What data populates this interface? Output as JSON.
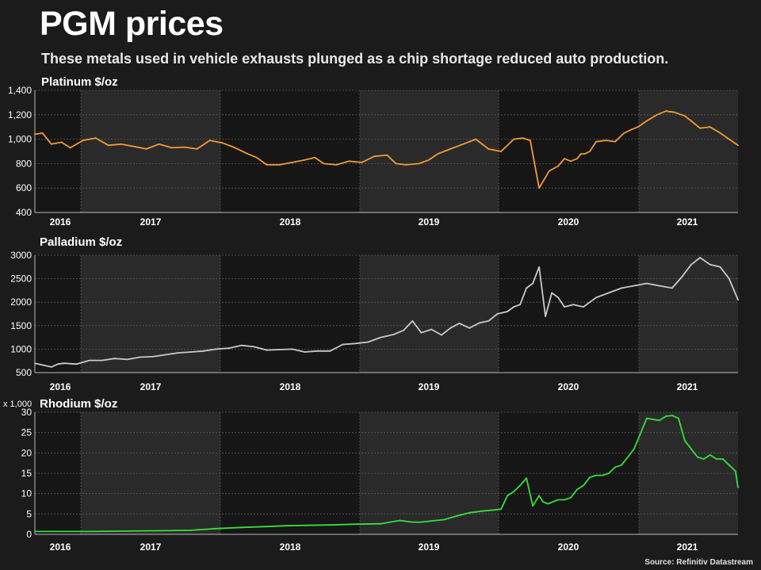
{
  "title": "PGM prices",
  "subtitle": "These metals used in vehicle exhausts plunged as a chip shortage reduced auto production.",
  "source": "Source: Refinitiv Datastream",
  "colors": {
    "background": "#1b1b1b",
    "band_dark": "#161616",
    "band_light": "#2a2a2a",
    "platinum": "#f29a38",
    "palladium": "#c9c9c9",
    "rhodium": "#37e03a",
    "text": "#ffffff"
  },
  "chart_data": [
    {
      "type": "line",
      "title": "Platinum $/oz",
      "unit_note": "",
      "x_range": [
        2015.87,
        2021.42
      ],
      "ylim": [
        400,
        1400
      ],
      "yticks": [
        400,
        600,
        800,
        1000,
        1200,
        1400
      ],
      "ytick_labels": [
        "400",
        "600",
        "800",
        "1,000",
        "1,200",
        "1,400"
      ],
      "xticks": [
        "2016",
        "2017",
        "2018",
        "2019",
        "2020",
        "2021"
      ],
      "grid": true,
      "series": [
        {
          "color_key": "platinum",
          "x": [
            2015.87,
            2015.93,
            2016.0,
            2016.08,
            2016.15,
            2016.25,
            2016.35,
            2016.45,
            2016.55,
            2016.65,
            2016.75,
            2016.85,
            2016.95,
            2017.05,
            2017.15,
            2017.25,
            2017.35,
            2017.45,
            2017.55,
            2017.62,
            2017.7,
            2017.8,
            2017.9,
            2018.0,
            2018.08,
            2018.15,
            2018.25,
            2018.35,
            2018.45,
            2018.55,
            2018.65,
            2018.72,
            2018.8,
            2018.9,
            2018.98,
            2019.05,
            2019.15,
            2019.25,
            2019.35,
            2019.45,
            2019.55,
            2019.65,
            2019.72,
            2019.78,
            2019.85,
            2019.93,
            2020.0,
            2020.05,
            2020.1,
            2020.15,
            2020.18,
            2020.21,
            2020.25,
            2020.3,
            2020.38,
            2020.45,
            2020.52,
            2020.58,
            2020.63,
            2020.7,
            2020.78,
            2020.85,
            2020.92,
            2021.0,
            2021.05,
            2021.12,
            2021.2,
            2021.28,
            2021.35,
            2021.42
          ],
          "y": [
            1040,
            1050,
            960,
            975,
            930,
            990,
            1010,
            950,
            960,
            940,
            920,
            960,
            930,
            935,
            920,
            990,
            970,
            930,
            880,
            850,
            790,
            790,
            810,
            830,
            850,
            800,
            790,
            820,
            810,
            860,
            870,
            800,
            790,
            800,
            830,
            880,
            920,
            960,
            1000,
            920,
            900,
            1000,
            1010,
            990,
            600,
            740,
            780,
            840,
            820,
            840,
            880,
            880,
            900,
            980,
            990,
            980,
            1050,
            1080,
            1100,
            1150,
            1200,
            1230,
            1220,
            1190,
            1150,
            1090,
            1100,
            1050,
            1000,
            950
          ]
        }
      ]
    },
    {
      "type": "line",
      "title": "Palladium $/oz",
      "unit_note": "",
      "x_range": [
        2015.87,
        2021.42
      ],
      "ylim": [
        500,
        3000
      ],
      "yticks": [
        500,
        1000,
        1500,
        2000,
        2500,
        3000
      ],
      "ytick_labels": [
        "500",
        "1000",
        "1500",
        "2000",
        "2500",
        "3000"
      ],
      "xticks": [
        "2016",
        "2017",
        "2018",
        "2019",
        "2020",
        "2021"
      ],
      "grid": true,
      "series": [
        {
          "color_key": "palladium",
          "x": [
            2015.87,
            2015.95,
            2016.0,
            2016.05,
            2016.1,
            2016.2,
            2016.3,
            2016.4,
            2016.5,
            2016.6,
            2016.7,
            2016.8,
            2016.9,
            2017.0,
            2017.1,
            2017.2,
            2017.3,
            2017.4,
            2017.5,
            2017.6,
            2017.7,
            2017.8,
            2017.9,
            2018.0,
            2018.1,
            2018.2,
            2018.3,
            2018.4,
            2018.5,
            2018.6,
            2018.7,
            2018.78,
            2018.85,
            2018.92,
            2019.0,
            2019.08,
            2019.15,
            2019.22,
            2019.3,
            2019.38,
            2019.45,
            2019.52,
            2019.6,
            2019.65,
            2019.7,
            2019.75,
            2019.8,
            2019.85,
            2019.9,
            2019.95,
            2020.0,
            2020.05,
            2020.12,
            2020.2,
            2020.3,
            2020.4,
            2020.5,
            2020.6,
            2020.7,
            2020.8,
            2020.9,
            2020.98,
            2021.05,
            2021.12,
            2021.2,
            2021.28,
            2021.35,
            2021.42
          ],
          "y": [
            700,
            650,
            620,
            680,
            700,
            680,
            760,
            760,
            800,
            780,
            830,
            840,
            880,
            920,
            940,
            960,
            1000,
            1020,
            1080,
            1050,
            980,
            990,
            1000,
            940,
            960,
            960,
            1100,
            1120,
            1150,
            1250,
            1310,
            1400,
            1600,
            1350,
            1420,
            1300,
            1450,
            1550,
            1450,
            1560,
            1600,
            1750,
            1800,
            1900,
            1950,
            2300,
            2400,
            2750,
            1700,
            2200,
            2100,
            1900,
            1950,
            1900,
            2100,
            2200,
            2300,
            2350,
            2400,
            2350,
            2300,
            2550,
            2800,
            2950,
            2800,
            2750,
            2500,
            2050
          ]
        }
      ]
    },
    {
      "type": "line",
      "title": "Rhodium $/oz",
      "unit_note": "x 1,000",
      "x_range": [
        2015.87,
        2021.42
      ],
      "ylim": [
        0,
        30
      ],
      "yticks": [
        0,
        5,
        10,
        15,
        20,
        25,
        30
      ],
      "ytick_labels": [
        "0",
        "5",
        "10",
        "15",
        "20",
        "25",
        "30"
      ],
      "xticks": [
        "2016",
        "2017",
        "2018",
        "2019",
        "2020",
        "2021"
      ],
      "grid": true,
      "series": [
        {
          "color_key": "rhodium",
          "x": [
            2015.87,
            2016.0,
            2016.3,
            2016.6,
            2016.9,
            2017.1,
            2017.3,
            2017.5,
            2017.7,
            2017.85,
            2018.0,
            2018.2,
            2018.4,
            2018.6,
            2018.75,
            2018.85,
            2018.92,
            2019.0,
            2019.1,
            2019.2,
            2019.3,
            2019.4,
            2019.5,
            2019.55,
            2019.6,
            2019.65,
            2019.7,
            2019.75,
            2019.8,
            2019.85,
            2019.88,
            2019.92,
            2020.0,
            2020.05,
            2020.1,
            2020.15,
            2020.2,
            2020.25,
            2020.3,
            2020.35,
            2020.4,
            2020.45,
            2020.5,
            2020.55,
            2020.6,
            2020.7,
            2020.8,
            2020.85,
            2020.9,
            2020.95,
            2021.0,
            2021.05,
            2021.1,
            2021.15,
            2021.2,
            2021.25,
            2021.3,
            2021.35,
            2021.4,
            2021.42
          ],
          "y": [
            0.7,
            0.7,
            0.7,
            0.8,
            0.9,
            1.0,
            1.4,
            1.7,
            1.9,
            2.1,
            2.2,
            2.3,
            2.5,
            2.6,
            3.4,
            3.0,
            3.0,
            3.3,
            3.6,
            4.5,
            5.3,
            5.7,
            6.0,
            6.2,
            9.5,
            10.5,
            12.0,
            13.8,
            7.0,
            9.5,
            8.0,
            7.5,
            8.5,
            8.5,
            9.0,
            11.0,
            12.0,
            14.0,
            14.5,
            14.5,
            15.0,
            16.5,
            17.0,
            19.0,
            21.0,
            28.5,
            28.0,
            29.0,
            29.2,
            28.5,
            23.0,
            21.0,
            19.0,
            18.5,
            19.5,
            18.5,
            18.5,
            17.0,
            15.5,
            11.5
          ]
        }
      ]
    }
  ]
}
